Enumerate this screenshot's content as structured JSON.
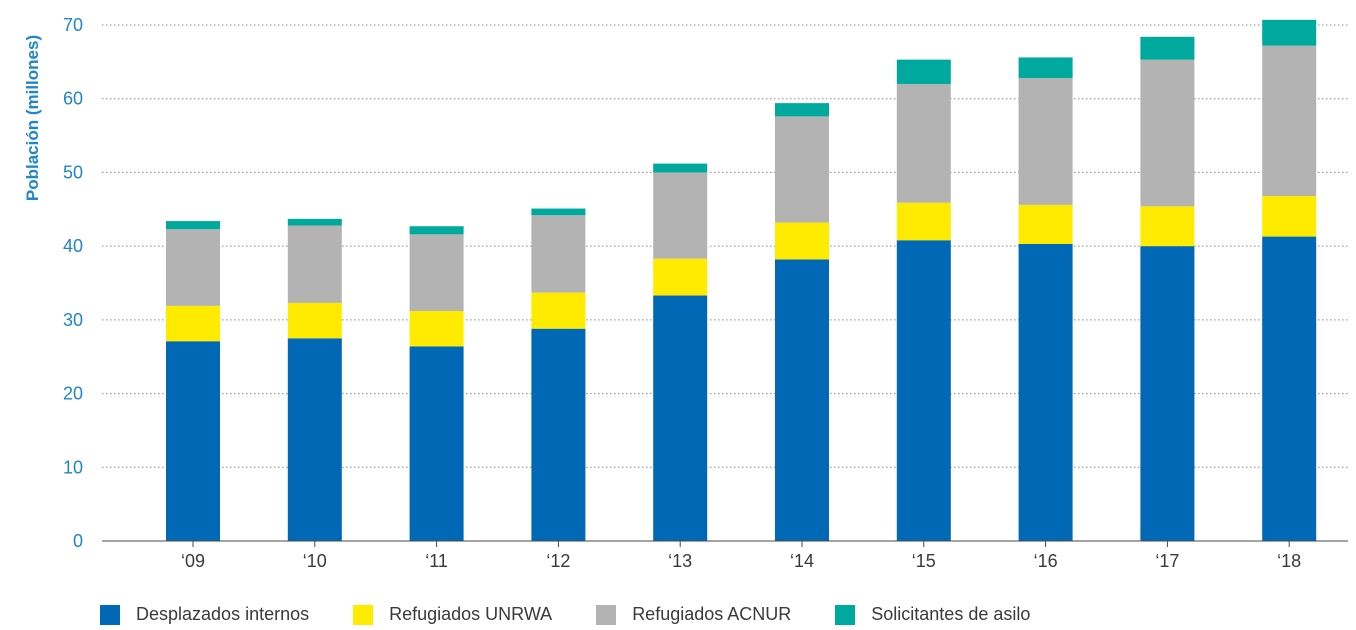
{
  "chart_data": {
    "type": "bar",
    "stacked": true,
    "categories": [
      "‘09",
      "‘10",
      "‘11",
      "‘12",
      "‘13",
      "‘14",
      "‘15",
      "‘16",
      "‘17",
      "‘18"
    ],
    "ylabel": "Población (millones)",
    "ylim": [
      0,
      70
    ],
    "yticks": [
      0,
      10,
      20,
      30,
      40,
      50,
      60,
      70
    ],
    "grid": true,
    "legend_position": "bottom",
    "series": [
      {
        "name": "Desplazados internos",
        "color": "#0068b4",
        "values": [
          27.1,
          27.5,
          26.4,
          28.8,
          33.3,
          38.2,
          40.8,
          40.3,
          40.0,
          41.3
        ]
      },
      {
        "name": "Refugiados UNRWA",
        "color": "#ffeb00",
        "values": [
          4.8,
          4.8,
          4.8,
          4.9,
          5.0,
          5.0,
          5.1,
          5.3,
          5.4,
          5.5
        ]
      },
      {
        "name": "Refugiados ACNUR",
        "color": "#b3b3b3",
        "values": [
          10.4,
          10.5,
          10.4,
          10.5,
          11.7,
          14.4,
          16.1,
          17.2,
          19.9,
          20.4
        ]
      },
      {
        "name": "Solicitantes de asilo",
        "color": "#00a99d",
        "values": [
          1.1,
          0.9,
          1.1,
          0.9,
          1.2,
          1.8,
          3.3,
          2.8,
          3.1,
          3.5
        ]
      }
    ]
  }
}
